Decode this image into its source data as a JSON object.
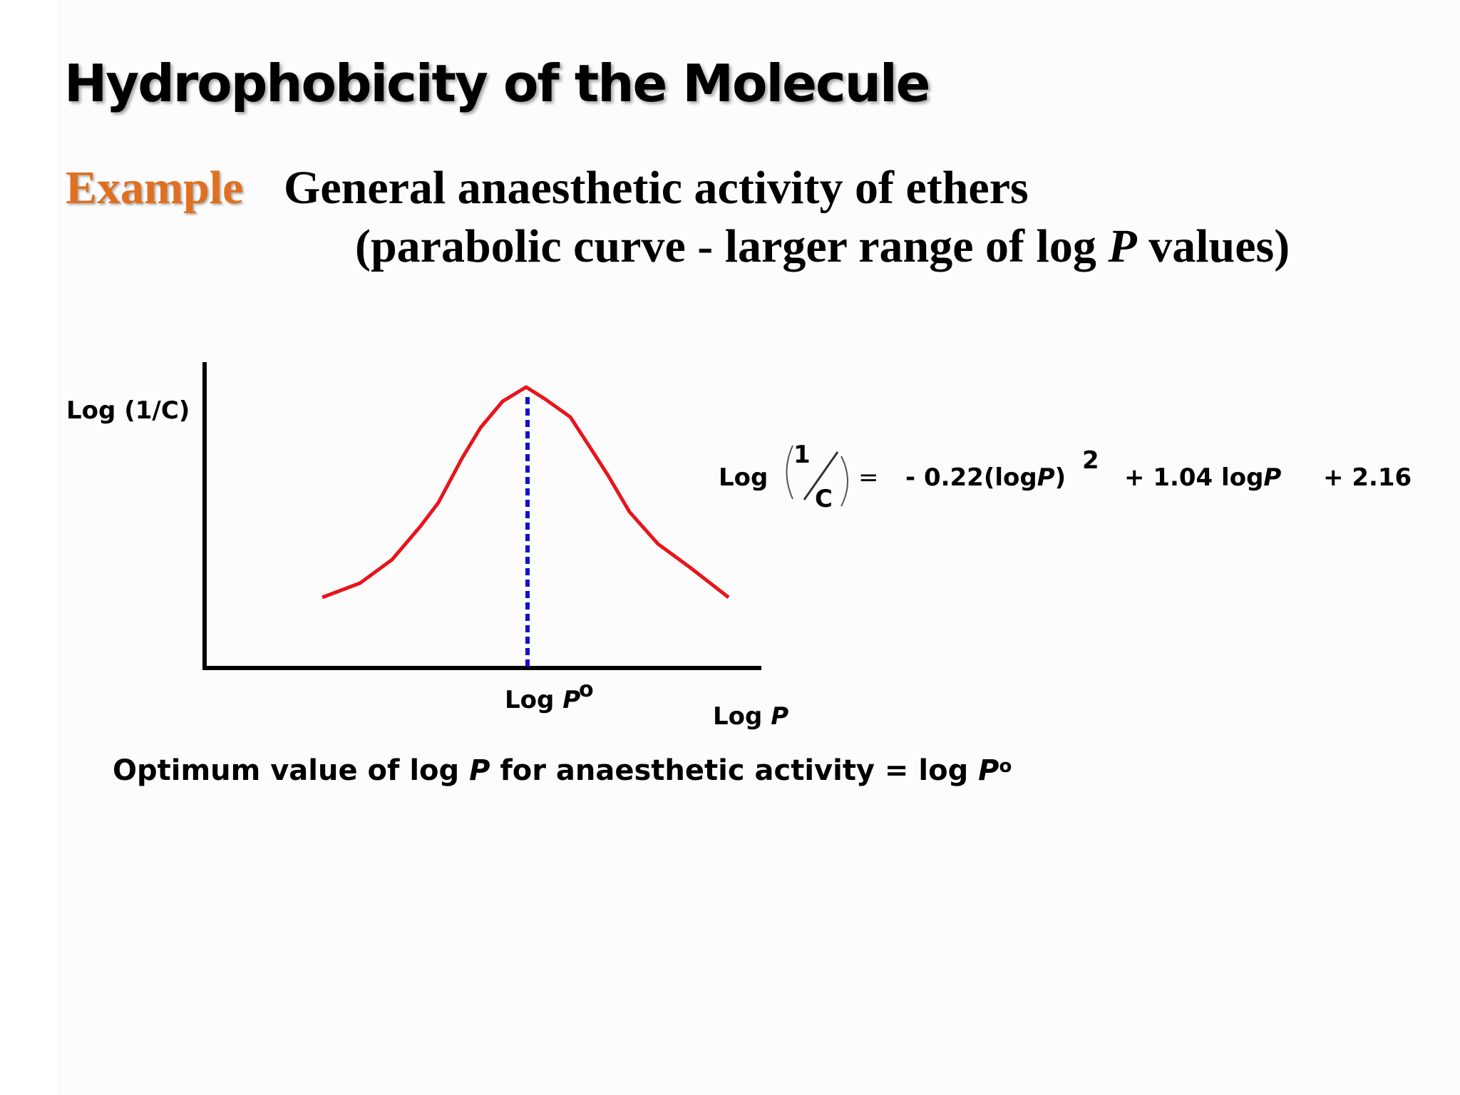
{
  "slide": {
    "title": "Hydrophobicity of the Molecule",
    "example_label": "Example",
    "subtitle_line1": "General anaesthetic activity of ethers",
    "subtitle_line2_pre": "(parabolic curve - larger range of log ",
    "subtitle_line2_italic": "P",
    "subtitle_line2_post": " values)"
  },
  "diagram": {
    "y_axis_label": "Log (1/C)",
    "x_axis_label_pre": "Log ",
    "x_axis_label_italic": "P",
    "optimum_label_pre": "Log ",
    "optimum_label_italic": "P",
    "optimum_superscript": "o",
    "curve_color": "#e8141c",
    "optimum_line_color": "#1010d0",
    "axis_color": "#000000"
  },
  "equation": {
    "log": "Log",
    "frac_numerator": "1",
    "frac_denominator": "C",
    "equals": "=",
    "term1_pre": "- 0.22(log",
    "term1_italic": "P",
    "term1_post": ")",
    "exponent": "2",
    "term2_pre": "+  1.04 log",
    "term2_italic": "P",
    "term3": "+  2.16"
  },
  "footnote": {
    "pre": "Optimum value of log ",
    "italic1": "P",
    "mid": " for anaesthetic activity = log ",
    "italic2": "P",
    "sup": "o"
  },
  "colors": {
    "example_orange": "#e07020"
  }
}
